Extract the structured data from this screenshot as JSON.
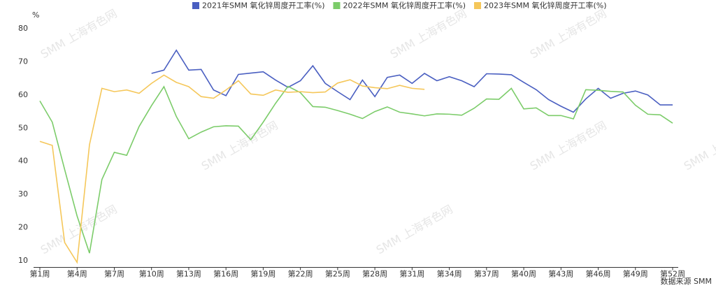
{
  "chart_data": {
    "type": "line",
    "unit": "%",
    "source": "数据来源 SMM",
    "watermark": "SMM 上海有色网",
    "categories": [
      "第1周",
      null,
      null,
      "第4周",
      null,
      null,
      "第7周",
      null,
      null,
      "第10周",
      null,
      null,
      "第13周",
      null,
      null,
      "第16周",
      null,
      null,
      "第19周",
      null,
      null,
      "第22周",
      null,
      null,
      "第25周",
      null,
      null,
      "第28周",
      null,
      null,
      "第31周",
      null,
      null,
      "第34周",
      null,
      null,
      "第37周",
      null,
      null,
      "第40周",
      null,
      null,
      "第43周",
      null,
      null,
      "第46周",
      null,
      null,
      "第49周",
      null,
      null,
      "第52周"
    ],
    "ylim": [
      8,
      80
    ],
    "yticks": [
      10,
      20,
      30,
      40,
      50,
      60,
      70,
      80
    ],
    "grid": false,
    "legend": "top",
    "series": [
      {
        "name": "2021年SMM 氧化锌周度开工率(%)",
        "color": "#4a5fc1",
        "values": [
          null,
          null,
          null,
          null,
          null,
          null,
          null,
          null,
          null,
          66.5,
          67.5,
          73.5,
          67.5,
          67.7,
          61.5,
          59.8,
          66.2,
          66.6,
          67.0,
          64.5,
          62.3,
          64.3,
          68.8,
          63.5,
          61.0,
          58.6,
          64.5,
          59.5,
          65.3,
          66.0,
          63.5,
          66.5,
          64.3,
          65.5,
          64.3,
          62.5,
          66.4,
          66.3,
          66.1,
          63.8,
          61.6,
          58.6,
          56.6,
          54.8,
          58.8,
          62.0,
          59.0,
          60.5,
          61.2,
          60.0,
          57.0,
          57.0
        ]
      },
      {
        "name": "2022年SMM 氧化锌周度开工率(%)",
        "color": "#7ccc6a",
        "values": [
          58.2,
          51.8,
          37.5,
          23.5,
          12.3,
          34.5,
          42.7,
          41.8,
          50.5,
          56.8,
          62.5,
          53.5,
          46.8,
          48.8,
          50.4,
          50.7,
          50.6,
          46.5,
          51.8,
          57.5,
          62.6,
          60.7,
          56.5,
          56.3,
          55.3,
          54.2,
          52.9,
          55.0,
          56.4,
          54.8,
          54.3,
          53.7,
          54.3,
          54.2,
          53.9,
          56.0,
          58.8,
          58.7,
          62.0,
          55.8,
          56.1,
          53.8,
          53.8,
          52.8,
          61.6,
          61.4,
          61.1,
          60.9,
          56.9,
          54.2,
          54.0,
          51.5
        ]
      },
      {
        "name": "2023年SMM 氧化锌周度开工率(%)",
        "color": "#f5c75a",
        "values": [
          46.0,
          44.8,
          15.5,
          9.5,
          45.0,
          62.0,
          61.0,
          61.5,
          60.5,
          63.5,
          66.0,
          63.8,
          62.5,
          59.5,
          59.0,
          61.5,
          64.3,
          60.3,
          59.9,
          61.5,
          60.8,
          61.0,
          60.7,
          60.9,
          63.6,
          64.6,
          62.7,
          62.2,
          61.9,
          62.9,
          62.0,
          61.7,
          null,
          null,
          null,
          null,
          null,
          null,
          null,
          null,
          null,
          null,
          null,
          null,
          null,
          null,
          null,
          null,
          null,
          null,
          null,
          null
        ]
      }
    ]
  }
}
